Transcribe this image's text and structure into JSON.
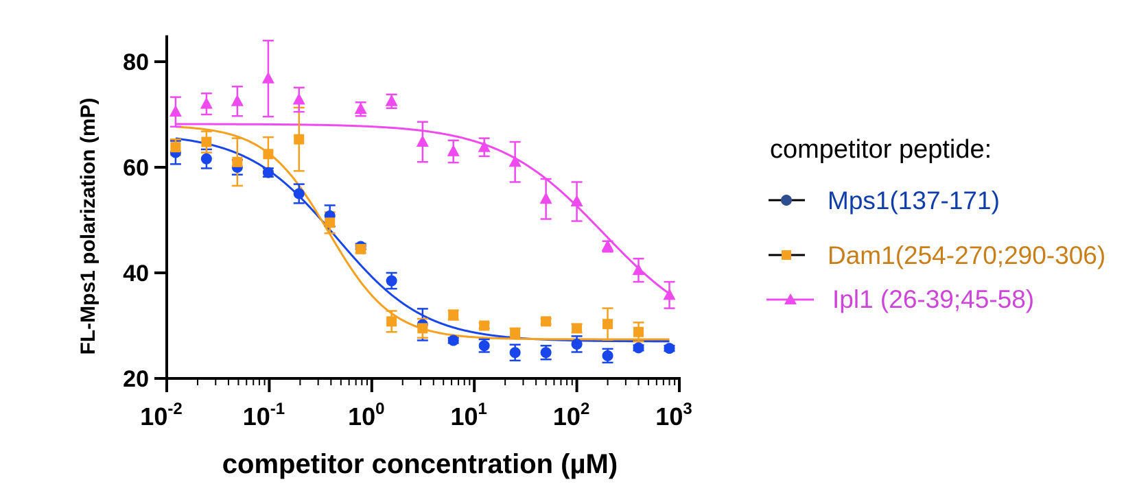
{
  "chart_data": {
    "type": "scatter",
    "x_scale": "log",
    "xlabel": "competitor concentration (µM)",
    "ylabel": "FL-Mps1 polarization (mP)",
    "xlim": [
      0.01,
      1000
    ],
    "ylim": [
      20,
      85
    ],
    "x_ticks": [
      {
        "value": 0.01,
        "base": "10",
        "exp": "-2"
      },
      {
        "value": 0.1,
        "base": "10",
        "exp": "-1"
      },
      {
        "value": 1,
        "base": "10",
        "exp": "0"
      },
      {
        "value": 10,
        "base": "10",
        "exp": "1"
      },
      {
        "value": 100,
        "base": "10",
        "exp": "2"
      },
      {
        "value": 1000,
        "base": "10",
        "exp": "3"
      }
    ],
    "y_ticks": [
      "20",
      "40",
      "60",
      "80"
    ],
    "legend": {
      "title": "competitor peptide:",
      "position": "right"
    },
    "series": [
      {
        "name": "Mps1(137-171)",
        "color": "#1846ea",
        "text_color": "#0f3ea8",
        "legend_marker_color": "#2f4e8f",
        "marker": "circle",
        "fit": {
          "top": 66.5,
          "bottom": 27,
          "ic50": 0.45,
          "hill": 1
        },
        "x": [
          0.0122,
          0.0244,
          0.0488,
          0.0977,
          0.195,
          0.39,
          0.78,
          1.56,
          3.13,
          6.25,
          12.5,
          25,
          50,
          100,
          200,
          400,
          800
        ],
        "y": [
          62.8,
          61.6,
          60.0,
          59.0,
          55.0,
          50.8,
          45.0,
          38.5,
          30.2,
          27.2,
          26.2,
          24.9,
          24.9,
          26.5,
          24.3,
          25.8,
          25.7
        ],
        "err": [
          2.2,
          1.8,
          1.4,
          0.8,
          1.8,
          2.0,
          0.5,
          1.5,
          3.0,
          0.5,
          1.2,
          1.5,
          1.3,
          1.5,
          1.3,
          0.5,
          0.5
        ]
      },
      {
        "name": "Dam1(254-270;290-306)",
        "color": "#f5a01e",
        "text_color": "#c87f1a",
        "legend_marker_color": "#f5a01e",
        "marker": "square",
        "fit": {
          "top": 68,
          "bottom": 27.4,
          "ic50": 0.38,
          "hill": 1.4
        },
        "x": [
          0.0122,
          0.0244,
          0.0488,
          0.0977,
          0.195,
          0.39,
          0.78,
          1.56,
          3.13,
          6.25,
          12.5,
          25,
          50,
          100,
          200,
          400
        ],
        "y": [
          63.8,
          64.8,
          61.0,
          62.5,
          65.3,
          49.5,
          44.5,
          30.8,
          29.5,
          32.0,
          30.0,
          28.5,
          30.8,
          29.5,
          30.3,
          28.8
        ],
        "err": [
          1.5,
          2.0,
          4.5,
          3.2,
          6.0,
          2.0,
          0.7,
          2.0,
          1.8,
          0.9,
          0.5,
          1.0,
          0.5,
          0.8,
          3.0,
          1.8
        ]
      },
      {
        "name": "Ipl1 (26-39;45-58)",
        "color": "#ee4aef",
        "text_color": "#cc45d8",
        "legend_marker_color": "#ee4aef",
        "marker": "triangle",
        "fit": {
          "top": 68.2,
          "bottom": 27,
          "ic50": 180,
          "hill": 0.85
        },
        "x": [
          0.0122,
          0.0244,
          0.0488,
          0.0977,
          0.195,
          0.78,
          1.56,
          3.13,
          6.25,
          12.5,
          25,
          50,
          100,
          200,
          400,
          800
        ],
        "y": [
          70.5,
          72.0,
          72.5,
          76.8,
          72.8,
          71.0,
          72.5,
          64.8,
          63.0,
          63.8,
          61.0,
          54.0,
          53.5,
          45.0,
          40.5,
          35.8
        ],
        "err": [
          2.8,
          2.0,
          2.8,
          7.2,
          2.3,
          1.3,
          1.3,
          3.8,
          2.1,
          1.7,
          3.8,
          3.8,
          3.7,
          1.0,
          2.2,
          2.5
        ]
      }
    ]
  }
}
